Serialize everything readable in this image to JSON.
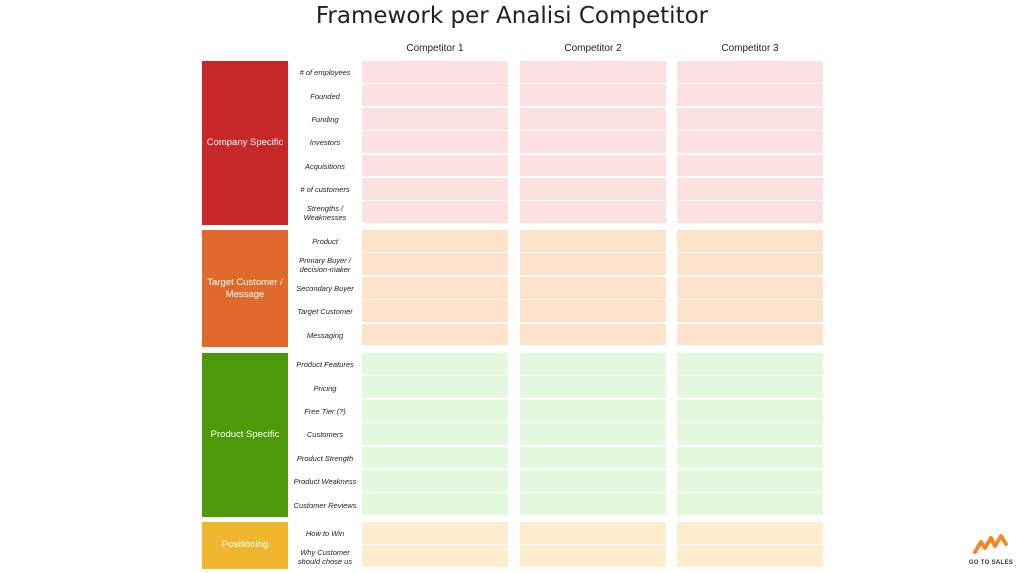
{
  "title": "Framework per Analisi Competitor",
  "columns": [
    "Competitor 1",
    "Competitor 2",
    "Competitor 3"
  ],
  "colors": {
    "company_specific": "#c62828",
    "company_cells": "#fde0e0",
    "target_customer": "#e06a2c",
    "target_cells": "#fde3cc",
    "product_specific": "#4c9a0a",
    "product_cells": "#e3f8dc",
    "positioning": "#f0b72e",
    "positioning_cells": "#fdeccd"
  },
  "sections": [
    {
      "label": "Company Specific",
      "rows": [
        "# of employees",
        "Founded",
        "Funding",
        "Investors",
        "Acquisitions",
        "# of customers",
        "Strengths / Weaknesses"
      ]
    },
    {
      "label": "Target Customer / Message",
      "rows": [
        "Product",
        "Primary Buyer / decision-maker",
        "Secondary Buyer",
        "Target Customer",
        "Messaging"
      ]
    },
    {
      "label": "Product Specific",
      "rows": [
        "Product Features",
        "Pricing",
        "Free Tier (?)",
        "Customers",
        "Product Strength",
        "Product Weakness",
        "Customer Reviews"
      ]
    },
    {
      "label": "Positioning",
      "rows": [
        "How to Win",
        "Why Customer should chose us"
      ]
    }
  ],
  "logo": {
    "icon": "go-to-sales-logo-icon",
    "text": "GO TO SALES"
  }
}
